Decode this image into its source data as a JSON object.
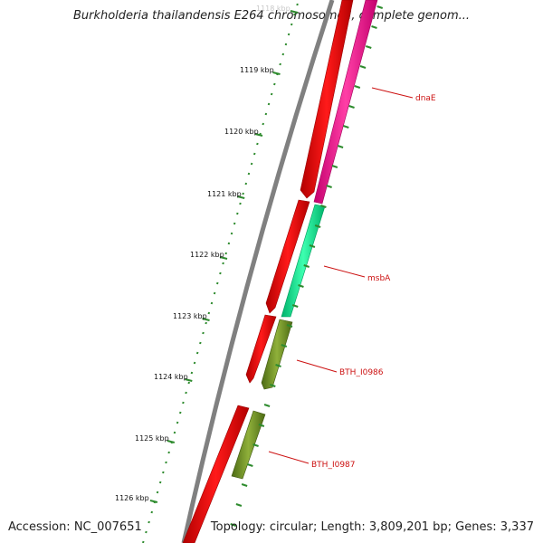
{
  "header": {
    "title": "Burkholderia thailandensis E264 chromosome I, complete genom..."
  },
  "footer": {
    "accession": "Accession: NC_007651",
    "summary": "Topology: circular; Length: 3,809,201 bp; Genes: 3,337"
  },
  "ruler": {
    "faded_label": "1118 kbp",
    "labels": [
      "1119 kbp",
      "1120 kbp",
      "1121 kbp",
      "1122 kbp",
      "1123 kbp",
      "1124 kbp",
      "1125 kbp",
      "1126 kbp"
    ]
  },
  "genes": {
    "labels": [
      "dnaE",
      "msbA",
      "BTH_I0986",
      "BTH_I0987"
    ]
  },
  "colors": {
    "backbone": "#808080",
    "forward_strand": "#ff0000",
    "dnaE": "#ff1493",
    "msbA": "#00fa9a",
    "BTH_I0986": "#6b8e23",
    "BTH_I0987": "#6b8e23",
    "ticks": "#2e8b2e",
    "label_text": "#cc1111"
  }
}
